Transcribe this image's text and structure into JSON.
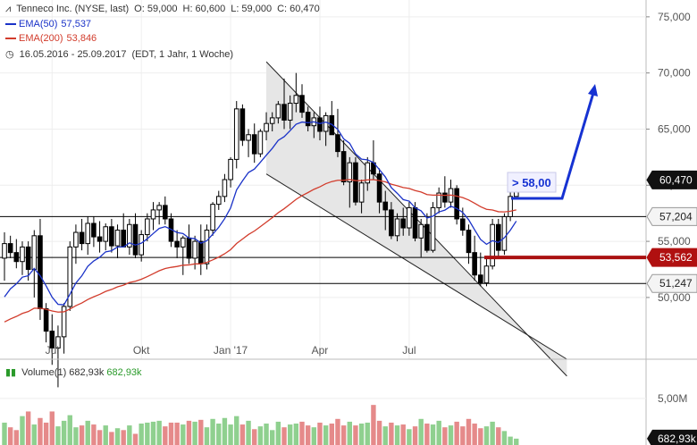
{
  "header": {
    "symbol_line": "Tenneco Inc. (NYSE, last)",
    "open": "O: 59,000",
    "high": "H: 60,600",
    "low": "L: 59,000",
    "close": "C: 60,470",
    "ema50_label": "EMA(50)",
    "ema50_value": "57,537",
    "ema200_label": "EMA(200)",
    "ema200_value": "53,846",
    "range": "16.05.2016 - 25.09.2017",
    "interval": "(EDT, 1 Jahr, 1 Woche)"
  },
  "colors": {
    "ema50": "#1a32c8",
    "ema200": "#d23c2c",
    "support_line": "#000000",
    "resistance_bar": "#aa1111",
    "target_arrow": "#1632d2",
    "volume_up": "#8fd08f",
    "volume_down": "#e58a8a",
    "channel_fill": "#e6e6e6"
  },
  "annotations": {
    "target_label": "> 58,00"
  },
  "volume": {
    "label": "Volume(1)",
    "value1": "682,93k",
    "value2": "682,93k",
    "axis_tick": "5,00M",
    "last_tag": "682,93k"
  },
  "chart_data": [
    {
      "type": "candlestick",
      "title": "Tenneco Inc. (NYSE, last)",
      "x_ticks": [
        "Jul",
        "Okt",
        "Jan '17",
        "Apr",
        "Jul"
      ],
      "y_ticks": [
        "75,000",
        "70,000",
        "65,000",
        "60,000",
        "55,000",
        "50,000"
      ],
      "ylim": [
        44.5,
        76.5
      ],
      "price_tags": [
        {
          "value": 60.47,
          "label": "60,470",
          "style": "dark"
        },
        {
          "value": 57.204,
          "label": "57,204",
          "style": "light"
        },
        {
          "value": 53.562,
          "label": "53,562",
          "style": "red"
        },
        {
          "value": 51.247,
          "label": "51,247",
          "style": "light"
        }
      ],
      "horizontal_lines": [
        57.204,
        53.562,
        51.247
      ],
      "ohlc": [
        [
          53.5,
          55.8,
          51.5,
          54.8
        ],
        [
          54.8,
          55.5,
          53.5,
          54.0
        ],
        [
          54.0,
          55.2,
          52.6,
          53.2
        ],
        [
          53.2,
          55.0,
          52.0,
          54.5
        ],
        [
          54.5,
          55.0,
          51.5,
          52.5
        ],
        [
          52.5,
          56.0,
          50.0,
          55.5
        ],
        [
          55.5,
          57.0,
          48.0,
          49.0
        ],
        [
          49.0,
          49.5,
          46.0,
          47.0
        ],
        [
          47.0,
          48.5,
          44.0,
          45.5
        ],
        [
          45.5,
          47.5,
          42.0,
          46.5
        ],
        [
          46.5,
          49.5,
          45.0,
          49.2
        ],
        [
          49.2,
          55.0,
          48.8,
          54.5
        ],
        [
          54.5,
          56.5,
          53.0,
          55.8
        ],
        [
          55.8,
          57.0,
          54.2,
          54.8
        ],
        [
          54.8,
          57.2,
          53.8,
          56.6
        ],
        [
          56.6,
          57.2,
          54.5,
          55.4
        ],
        [
          55.4,
          56.8,
          54.0,
          55.0
        ],
        [
          55.0,
          56.6,
          54.2,
          56.3
        ],
        [
          56.3,
          57.0,
          54.0,
          54.6
        ],
        [
          54.6,
          56.5,
          53.5,
          56.0
        ],
        [
          56.0,
          57.5,
          54.5,
          54.5
        ],
        [
          54.5,
          57.0,
          53.8,
          56.5
        ],
        [
          56.5,
          57.5,
          53.5,
          53.8
        ],
        [
          53.8,
          56.0,
          53.2,
          55.6
        ],
        [
          55.6,
          57.5,
          55.0,
          57.0
        ],
        [
          57.0,
          58.5,
          56.0,
          57.8
        ],
        [
          57.8,
          58.5,
          56.5,
          58.2
        ],
        [
          58.2,
          59.0,
          56.5,
          57.0
        ],
        [
          57.0,
          57.5,
          54.5,
          55.0
        ],
        [
          55.0,
          56.0,
          53.5,
          54.5
        ],
        [
          54.5,
          55.5,
          52.0,
          55.3
        ],
        [
          55.3,
          56.5,
          53.0,
          53.5
        ],
        [
          53.5,
          55.5,
          52.5,
          55.0
        ],
        [
          55.0,
          56.5,
          52.0,
          53.0
        ],
        [
          53.0,
          56.5,
          52.5,
          56.0
        ],
        [
          56.0,
          58.5,
          55.5,
          58.3
        ],
        [
          58.3,
          59.5,
          57.8,
          59.0
        ],
        [
          59.0,
          61.0,
          58.5,
          60.5
        ],
        [
          60.5,
          62.5,
          59.8,
          62.3
        ],
        [
          62.3,
          67.5,
          61.5,
          66.8
        ],
        [
          66.8,
          67.2,
          63.5,
          64.0
        ],
        [
          64.0,
          65.0,
          62.5,
          64.5
        ],
        [
          64.5,
          65.5,
          62.0,
          62.8
        ],
        [
          62.8,
          65.0,
          62.5,
          64.8
        ],
        [
          64.8,
          66.5,
          64.0,
          65.5
        ],
        [
          65.5,
          66.5,
          64.8,
          66.0
        ],
        [
          66.0,
          67.5,
          65.5,
          67.2
        ],
        [
          67.2,
          69.5,
          65.0,
          65.8
        ],
        [
          65.8,
          68.0,
          65.0,
          67.3
        ],
        [
          67.3,
          70.0,
          66.5,
          68.0
        ],
        [
          68.0,
          69.0,
          66.0,
          66.5
        ],
        [
          66.5,
          67.0,
          64.8,
          65.3
        ],
        [
          65.3,
          66.5,
          64.2,
          66.0
        ],
        [
          66.0,
          67.0,
          64.0,
          64.8
        ],
        [
          64.8,
          66.5,
          63.5,
          66.2
        ],
        [
          66.2,
          67.5,
          64.5,
          64.5
        ],
        [
          64.5,
          66.8,
          62.5,
          63.0
        ],
        [
          63.0,
          64.0,
          60.0,
          60.3
        ],
        [
          60.3,
          62.5,
          58.0,
          62.0
        ],
        [
          62.0,
          62.5,
          58.2,
          58.5
        ],
        [
          58.5,
          60.5,
          57.5,
          60.2
        ],
        [
          60.2,
          62.5,
          59.5,
          62.0
        ],
        [
          62.0,
          64.0,
          60.5,
          61.0
        ],
        [
          61.0,
          61.5,
          57.5,
          58.5
        ],
        [
          58.5,
          59.5,
          56.0,
          57.8
        ],
        [
          57.8,
          58.5,
          55.2,
          55.5
        ],
        [
          55.5,
          57.5,
          55.0,
          57.0
        ],
        [
          57.0,
          58.0,
          55.5,
          56.2
        ],
        [
          56.2,
          58.5,
          55.5,
          58.0
        ],
        [
          58.0,
          58.5,
          55.0,
          55.3
        ],
        [
          55.3,
          57.0,
          53.6,
          56.5
        ],
        [
          56.5,
          57.5,
          54.0,
          54.2
        ],
        [
          54.2,
          58.5,
          54.0,
          58.0
        ],
        [
          58.0,
          59.8,
          57.5,
          59.3
        ],
        [
          59.3,
          60.8,
          58.0,
          58.5
        ],
        [
          58.5,
          60.5,
          58.0,
          59.7
        ],
        [
          59.7,
          60.0,
          56.5,
          57.0
        ],
        [
          57.0,
          58.0,
          55.5,
          56.0
        ],
        [
          56.0,
          56.5,
          53.0,
          54.0
        ],
        [
          54.0,
          55.5,
          51.5,
          52.0
        ],
        [
          52.0,
          54.0,
          51.0,
          51.3
        ],
        [
          51.3,
          53.5,
          51.0,
          52.8
        ],
        [
          52.8,
          57.0,
          52.5,
          56.5
        ],
        [
          56.5,
          57.0,
          53.5,
          54.2
        ],
        [
          54.2,
          57.5,
          53.8,
          57.2
        ],
        [
          57.2,
          59.5,
          56.8,
          59.0
        ],
        [
          59.0,
          60.6,
          59.0,
          60.47
        ]
      ]
    },
    {
      "type": "bar",
      "title": "Volume(1)",
      "y_ticks": [
        "5,00M"
      ],
      "ylim": [
        0,
        7.0
      ],
      "unit": "M",
      "last_value": 0.683,
      "values": [
        [
          2.4,
          1
        ],
        [
          1.9,
          0
        ],
        [
          1.6,
          0
        ],
        [
          3.1,
          1
        ],
        [
          3.6,
          0
        ],
        [
          2.2,
          1
        ],
        [
          2.9,
          0
        ],
        [
          2.4,
          0
        ],
        [
          3.6,
          0
        ],
        [
          2.0,
          1
        ],
        [
          2.6,
          1
        ],
        [
          3.2,
          1
        ],
        [
          1.9,
          1
        ],
        [
          2.1,
          0
        ],
        [
          2.6,
          1
        ],
        [
          2.2,
          0
        ],
        [
          1.6,
          0
        ],
        [
          2.1,
          1
        ],
        [
          1.4,
          0
        ],
        [
          1.8,
          1
        ],
        [
          1.6,
          0
        ],
        [
          2.1,
          1
        ],
        [
          1.2,
          0
        ],
        [
          2.3,
          1
        ],
        [
          2.4,
          1
        ],
        [
          2.5,
          1
        ],
        [
          2.6,
          1
        ],
        [
          2.0,
          0
        ],
        [
          2.4,
          0
        ],
        [
          2.4,
          0
        ],
        [
          2.2,
          1
        ],
        [
          2.6,
          0
        ],
        [
          2.5,
          1
        ],
        [
          2.7,
          0
        ],
        [
          1.9,
          1
        ],
        [
          2.8,
          1
        ],
        [
          2.3,
          1
        ],
        [
          2.9,
          1
        ],
        [
          2.2,
          1
        ],
        [
          3.1,
          1
        ],
        [
          2.2,
          0
        ],
        [
          2.6,
          1
        ],
        [
          1.7,
          0
        ],
        [
          2.0,
          1
        ],
        [
          2.3,
          1
        ],
        [
          1.6,
          1
        ],
        [
          2.5,
          1
        ],
        [
          1.9,
          0
        ],
        [
          2.2,
          1
        ],
        [
          2.3,
          1
        ],
        [
          2.5,
          0
        ],
        [
          2.1,
          0
        ],
        [
          1.9,
          1
        ],
        [
          2.4,
          0
        ],
        [
          2.1,
          1
        ],
        [
          2.3,
          0
        ],
        [
          2.8,
          0
        ],
        [
          2.1,
          0
        ],
        [
          2.5,
          1
        ],
        [
          2.1,
          0
        ],
        [
          2.3,
          1
        ],
        [
          2.4,
          1
        ],
        [
          4.3,
          0
        ],
        [
          2.6,
          0
        ],
        [
          2.0,
          1
        ],
        [
          2.4,
          0
        ],
        [
          2.1,
          1
        ],
        [
          2.2,
          0
        ],
        [
          1.7,
          1
        ],
        [
          2.0,
          0
        ],
        [
          2.8,
          1
        ],
        [
          2.3,
          0
        ],
        [
          2.2,
          1
        ],
        [
          2.6,
          1
        ],
        [
          1.9,
          0
        ],
        [
          2.1,
          1
        ],
        [
          2.5,
          0
        ],
        [
          2.0,
          0
        ],
        [
          2.8,
          0
        ],
        [
          2.3,
          0
        ],
        [
          1.8,
          0
        ],
        [
          2.0,
          1
        ],
        [
          2.5,
          1
        ],
        [
          1.9,
          0
        ],
        [
          1.5,
          1
        ],
        [
          0.9,
          1
        ],
        [
          0.683,
          1
        ]
      ]
    }
  ]
}
